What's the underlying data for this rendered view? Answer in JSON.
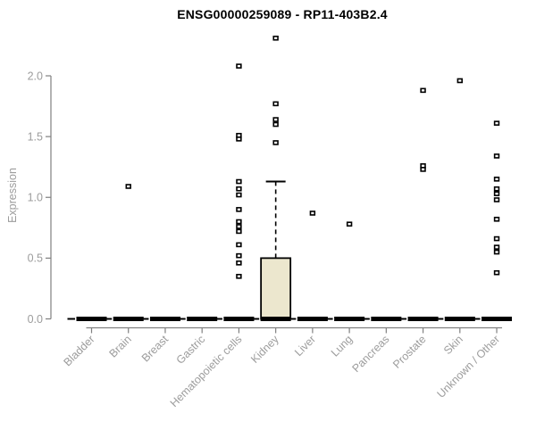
{
  "figure": {
    "title": "ENSG00000259089 - RP11-403B2.4",
    "y_axis_label": "Expression"
  },
  "colors": {
    "background": "#ffffff",
    "title_text": "#000000",
    "axis_line": "#808080",
    "tick_text": "#9c9c9c",
    "box_fill": "#ece7ce",
    "box_stroke": "#000000",
    "median_bar": "#000000",
    "point_stroke": "#000000",
    "point_fill": "#ffffff"
  },
  "chart_data": {
    "type": "boxplot",
    "title": "ENSG00000259089 - RP11-403B2.4",
    "xlabel": "",
    "ylabel": "Expression",
    "ylim": [
      0,
      2.4
    ],
    "yticks": [
      0,
      0.5,
      1,
      1.5,
      2
    ],
    "grid": false,
    "legend": null,
    "categories": [
      "Bladder",
      "Brain",
      "Breast",
      "Gastric",
      "Hematopoietic cells",
      "Kidney",
      "Liver",
      "Lung",
      "Pancreas",
      "Prostate",
      "Skin",
      "Unknown / Other"
    ],
    "boxes": [
      {
        "category": "Bladder",
        "q1": 0,
        "median": 0,
        "q3": 0,
        "whisker_low": 0,
        "whisker_high": 0,
        "outliers": []
      },
      {
        "category": "Brain",
        "q1": 0,
        "median": 0,
        "q3": 0,
        "whisker_low": 0,
        "whisker_high": 0,
        "outliers": [
          1.09
        ]
      },
      {
        "category": "Breast",
        "q1": 0,
        "median": 0,
        "q3": 0,
        "whisker_low": 0,
        "whisker_high": 0,
        "outliers": []
      },
      {
        "category": "Gastric",
        "q1": 0,
        "median": 0,
        "q3": 0,
        "whisker_low": 0,
        "whisker_high": 0,
        "outliers": []
      },
      {
        "category": "Hematopoietic cells",
        "q1": 0,
        "median": 0,
        "q3": 0,
        "whisker_low": 0,
        "whisker_high": 0,
        "outliers": [
          2.08,
          1.51,
          1.48,
          1.13,
          1.07,
          1.02,
          0.9,
          0.8,
          0.76,
          0.72,
          0.61,
          0.52,
          0.46,
          0.35
        ]
      },
      {
        "category": "Kidney",
        "q1": 0,
        "median": 0,
        "q3": 0.5,
        "whisker_low": 0,
        "whisker_high": 1.13,
        "outliers": [
          2.31,
          1.77,
          1.64,
          1.6,
          1.45
        ]
      },
      {
        "category": "Liver",
        "q1": 0,
        "median": 0,
        "q3": 0,
        "whisker_low": 0,
        "whisker_high": 0,
        "outliers": [
          0.87
        ]
      },
      {
        "category": "Lung",
        "q1": 0,
        "median": 0,
        "q3": 0,
        "whisker_low": 0,
        "whisker_high": 0,
        "outliers": [
          0.78
        ]
      },
      {
        "category": "Pancreas",
        "q1": 0,
        "median": 0,
        "q3": 0,
        "whisker_low": 0,
        "whisker_high": 0,
        "outliers": []
      },
      {
        "category": "Prostate",
        "q1": 0,
        "median": 0,
        "q3": 0,
        "whisker_low": 0,
        "whisker_high": 0,
        "outliers": [
          1.88,
          1.26,
          1.23
        ]
      },
      {
        "category": "Skin",
        "q1": 0,
        "median": 0,
        "q3": 0,
        "whisker_low": 0,
        "whisker_high": 0,
        "outliers": [
          1.96
        ]
      },
      {
        "category": "Unknown / Other",
        "q1": 0,
        "median": 0,
        "q3": 0,
        "whisker_low": 0,
        "whisker_high": 0,
        "outliers": [
          1.61,
          1.34,
          1.15,
          1.07,
          1.03,
          0.98,
          0.82,
          0.66,
          0.59,
          0.55,
          0.38
        ]
      }
    ]
  }
}
